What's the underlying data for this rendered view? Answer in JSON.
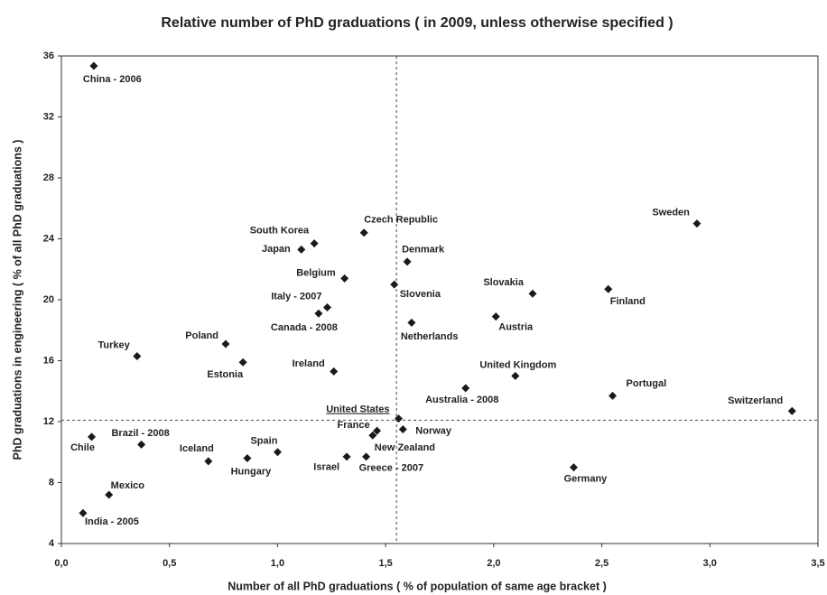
{
  "chart_data": {
    "type": "scatter",
    "title": "Relative number of PhD graduations ( in 2009, unless otherwise specified )",
    "x_label": "Number of all PhD graduations ( % of population of same age bracket )",
    "y_label": "PhD graduations in engineering ( % of all PhD graduations )",
    "color": "#1a1a1a",
    "labels": [
      "China - 2006",
      "South Korea",
      "Czech Republic",
      "Japan",
      "Denmark",
      "Belgium",
      "Slovenia",
      "Italy - 2007",
      "Canada - 2008",
      "Netherlands",
      "Slovakia",
      "Austria",
      "Finland",
      "Sweden",
      "Poland",
      "Turkey",
      "Estonia",
      "Ireland",
      "United Kingdom",
      "Australia - 2008",
      "Portugal",
      "Switzerland",
      "United States",
      "Norway",
      "France",
      "New Zealand",
      "Greece - 2007",
      "Israel",
      "Spain",
      "Hungary",
      "Iceland",
      "Brazil - 2008",
      "Chile",
      "Mexico",
      "India - 2005",
      "Germany"
    ],
    "x": [
      0.15,
      1.17,
      1.4,
      1.11,
      1.6,
      1.31,
      1.54,
      1.23,
      1.19,
      1.62,
      2.18,
      2.01,
      2.53,
      2.94,
      0.76,
      0.35,
      0.84,
      1.26,
      2.1,
      1.87,
      2.55,
      3.38,
      1.56,
      1.58,
      1.46,
      1.44,
      1.41,
      1.32,
      1.0,
      0.86,
      0.68,
      0.37,
      0.14,
      0.22,
      0.1,
      2.37
    ],
    "values": [
      35.35,
      23.7,
      24.4,
      23.3,
      22.5,
      21.4,
      21.0,
      19.5,
      19.1,
      18.5,
      20.4,
      18.9,
      20.7,
      25.0,
      17.1,
      16.3,
      15.9,
      15.3,
      15.0,
      14.2,
      13.7,
      12.7,
      12.2,
      11.5,
      11.4,
      11.1,
      9.7,
      9.7,
      10.0,
      9.6,
      9.4,
      10.5,
      11.0,
      7.2,
      6.0,
      9.0
    ],
    "xlim": [
      0,
      3.5
    ],
    "xticks": [
      {
        "value": 0,
        "label": "0,0"
      },
      {
        "value": 0.5,
        "label": "0,5"
      },
      {
        "value": 1,
        "label": "1,0"
      },
      {
        "value": 1.5,
        "label": "1,5"
      },
      {
        "value": 2,
        "label": "2,0"
      },
      {
        "value": 2.5,
        "label": "2,5"
      },
      {
        "value": 3,
        "label": "3,0"
      },
      {
        "value": 3.5,
        "label": "3,5"
      }
    ],
    "ylim": [
      4,
      36
    ],
    "yticks": [
      4,
      8,
      12,
      16,
      20,
      24,
      28,
      32,
      36
    ],
    "reference_x": 1.55,
    "reference_y": 12.1,
    "grid": false
  }
}
